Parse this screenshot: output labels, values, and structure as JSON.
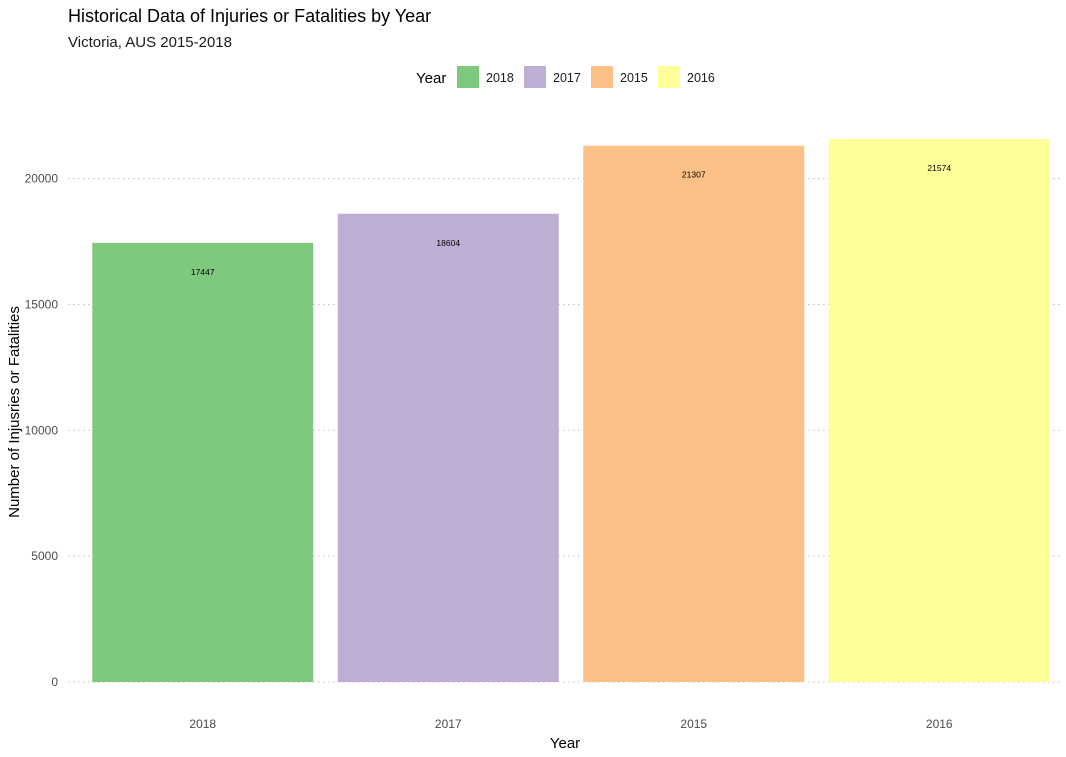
{
  "chart_data": {
    "type": "bar",
    "title": "Historical Data of Injuries or Fatalities by Year",
    "subtitle": "Victoria, AUS 2015-2018",
    "xlabel": "Year",
    "ylabel": "Number of Injusries or Fatalities",
    "categories": [
      "2018",
      "2017",
      "2015",
      "2016"
    ],
    "values": [
      17447,
      18604,
      21307,
      21574
    ],
    "data_labels": [
      "17447",
      "18604",
      "21307",
      "21574"
    ],
    "colors": [
      "#7FC97F",
      "#BEAED4",
      "#FDC086",
      "#FFFF99"
    ],
    "ylim": [
      0,
      21574
    ],
    "yticks": [
      0,
      5000,
      10000,
      15000,
      20000
    ],
    "ytick_labels": [
      "0",
      "5000",
      "10000",
      "15000",
      "20000"
    ],
    "grid": "horizontal-dotted",
    "legend": {
      "title": "Year",
      "position": "top",
      "entries": [
        "2018",
        "2017",
        "2015",
        "2016"
      ]
    }
  }
}
